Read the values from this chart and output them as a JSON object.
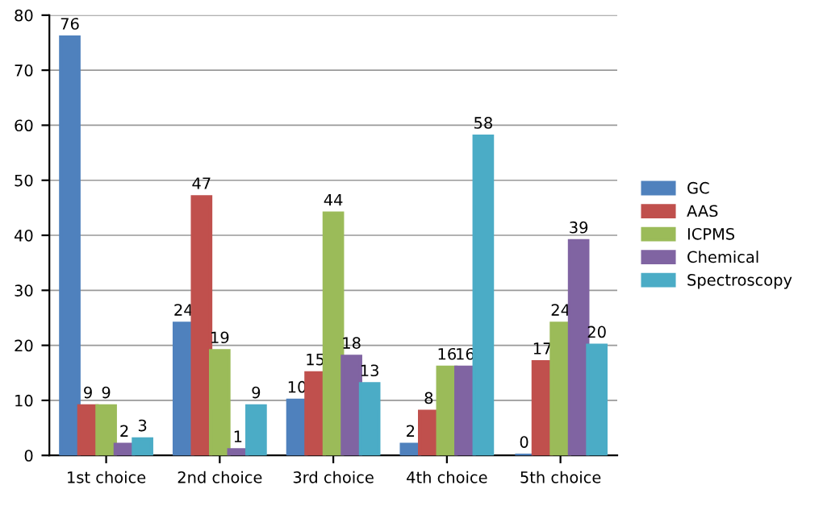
{
  "chart_data": {
    "type": "bar",
    "categories": [
      "1st choice",
      "2nd choice",
      "3rd choice",
      "4th choice",
      "5th choice"
    ],
    "series": [
      {
        "name": "GC",
        "color": "#4f81bd",
        "values": [
          76,
          24,
          10,
          2,
          0
        ]
      },
      {
        "name": "AAS",
        "color": "#c0504d",
        "values": [
          9,
          47,
          15,
          8,
          17
        ]
      },
      {
        "name": "ICPMS",
        "color": "#9bbb59",
        "values": [
          9,
          19,
          44,
          16,
          24
        ]
      },
      {
        "name": "Chemical",
        "color": "#8064a2",
        "values": [
          2,
          1,
          18,
          16,
          39
        ]
      },
      {
        "name": "Spectroscopy",
        "color": "#4bacc6",
        "values": [
          3,
          9,
          13,
          58,
          20
        ]
      }
    ],
    "ylim": [
      0,
      80
    ],
    "yticks": [
      0,
      10,
      20,
      30,
      40,
      50,
      60,
      70,
      80
    ],
    "grid": "y",
    "legend": "right",
    "data_labels": true
  }
}
